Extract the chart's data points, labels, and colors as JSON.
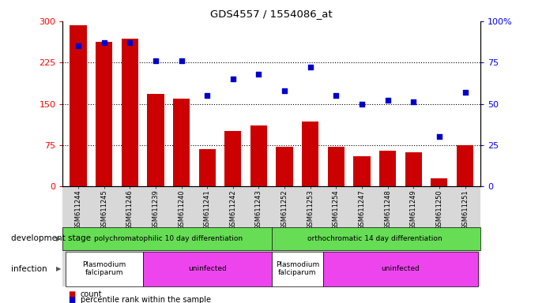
{
  "title": "GDS4557 / 1554086_at",
  "categories": [
    "GSM611244",
    "GSM611245",
    "GSM611246",
    "GSM611239",
    "GSM611240",
    "GSM611241",
    "GSM611242",
    "GSM611243",
    "GSM611252",
    "GSM611253",
    "GSM611254",
    "GSM611247",
    "GSM611248",
    "GSM611249",
    "GSM611250",
    "GSM611251"
  ],
  "bar_values": [
    292,
    262,
    268,
    168,
    160,
    68,
    100,
    110,
    72,
    118,
    72,
    55,
    65,
    62,
    15,
    75
  ],
  "scatter_values": [
    85,
    87,
    87,
    76,
    76,
    55,
    65,
    68,
    58,
    72,
    55,
    50,
    52,
    51,
    30,
    57
  ],
  "bar_color": "#cc0000",
  "scatter_color": "#0000cc",
  "ylim_left": [
    0,
    300
  ],
  "ylim_right": [
    0,
    100
  ],
  "yticks_left": [
    0,
    75,
    150,
    225,
    300
  ],
  "yticks_right": [
    0,
    25,
    50,
    75,
    100
  ],
  "ytick_labels_left": [
    "0",
    "75",
    "150",
    "225",
    "300"
  ],
  "ytick_labels_right": [
    "0",
    "25",
    "50",
    "75",
    "100%"
  ],
  "hlines": [
    75,
    150,
    225
  ],
  "dev_stage_groups": [
    {
      "label": "polychromatophilic 10 day differentiation",
      "start": 0,
      "end": 7,
      "color": "#66dd55"
    },
    {
      "label": "orthochromatic 14 day differentiation",
      "start": 8,
      "end": 15,
      "color": "#66dd55"
    }
  ],
  "infection_groups": [
    {
      "label": "Plasmodium\nfalciparum",
      "start": 0,
      "end": 2,
      "color": "#ffffff"
    },
    {
      "label": "uninfected",
      "start": 3,
      "end": 7,
      "color": "#ee44ee"
    },
    {
      "label": "Plasmodium\nfalciparum",
      "start": 8,
      "end": 9,
      "color": "#ffffff"
    },
    {
      "label": "uninfected",
      "start": 10,
      "end": 15,
      "color": "#ee44ee"
    }
  ],
  "legend_count_label": "count",
  "legend_pct_label": "percentile rank within the sample",
  "dev_stage_label": "development stage",
  "infection_label": "infection"
}
